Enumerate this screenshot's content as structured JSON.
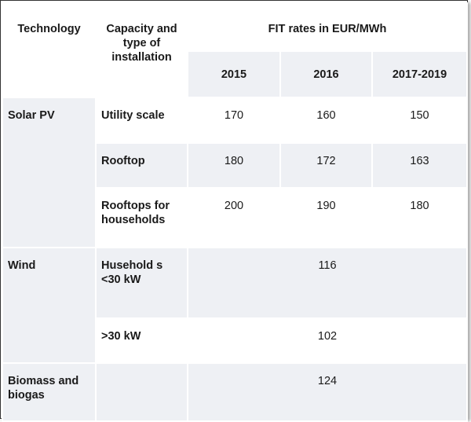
{
  "header": {
    "technology": "Technology",
    "capacity": "Capacity and type of installation",
    "fit": "FIT rates in EUR/MWh",
    "years": [
      "2015",
      "2016",
      "2017-2019"
    ]
  },
  "rows": {
    "solar": {
      "tech": "Solar PV",
      "utility": {
        "label": "Utility scale",
        "values": [
          "170",
          "160",
          "150"
        ]
      },
      "rooftop": {
        "label": "Rooftop",
        "values": [
          "180",
          "172",
          "163"
        ]
      },
      "households": {
        "label": "Rooftops for households",
        "values": [
          "200",
          "190",
          "180"
        ]
      }
    },
    "wind": {
      "tech": "Wind",
      "small": {
        "label": "Husehold s <30 kW",
        "value": "116"
      },
      "large": {
        "label": ">30 kW",
        "value": "102"
      }
    },
    "biomass": {
      "tech": "Biomass and biogas",
      "label": "",
      "value": "124"
    }
  }
}
